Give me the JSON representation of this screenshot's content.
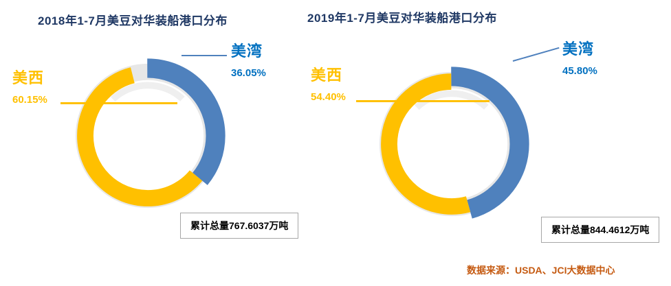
{
  "colors": {
    "gulf_blue": "#4f81bd",
    "west_yellow": "#ffc000",
    "base_gray": "#e7e7e7",
    "label_blue": "#0070c0",
    "title_navy": "#1f3864",
    "source_orange": "#c55a11"
  },
  "charts": [
    {
      "title": "2018年1-7月美豆对华装船港口分布",
      "slices": [
        {
          "name": "美湾",
          "pct": "36.05%"
        },
        {
          "name": "美西",
          "pct": "60.15%"
        }
      ],
      "total_label": "累计总量767.6037万吨"
    },
    {
      "title": "2019年1-7月美豆对华装船港口分布",
      "slices": [
        {
          "name": "美湾",
          "pct": "45.80%"
        },
        {
          "name": "美西",
          "pct": "54.40%"
        }
      ],
      "total_label": "累计总量844.4612万吨"
    }
  ],
  "source": "数据来源：USDA、JCI大数据中心",
  "chart_data": [
    {
      "type": "pie",
      "donut": true,
      "title": "2018年1-7月美豆对华装船港口分布",
      "labels": [
        "美湾",
        "美西"
      ],
      "values": [
        36.05,
        60.15
      ],
      "units": "%",
      "colors": [
        "#4f81bd",
        "#ffc000"
      ],
      "annotation": "累计总量767.6037万吨",
      "legend": "off",
      "start_angle_deg": 0,
      "direction": "clockwise"
    },
    {
      "type": "pie",
      "donut": true,
      "title": "2019年1-7月美豆对华装船港口分布",
      "labels": [
        "美湾",
        "美西"
      ],
      "values": [
        45.8,
        54.4
      ],
      "units": "%",
      "colors": [
        "#4f81bd",
        "#ffc000"
      ],
      "annotation": "累计总量844.4612万吨",
      "legend": "off",
      "start_angle_deg": 0,
      "direction": "clockwise"
    }
  ]
}
